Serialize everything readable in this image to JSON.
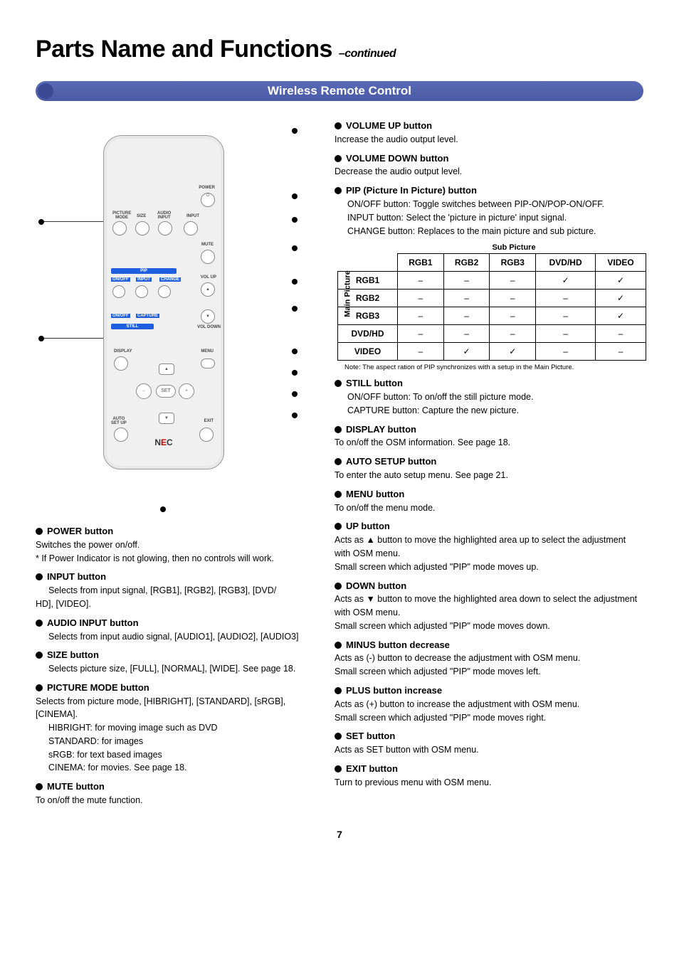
{
  "page": {
    "title": "Parts Name and Functions",
    "continued": "–continued",
    "banner": "Wireless Remote Control",
    "number": "7"
  },
  "remote_logo": "NEC",
  "left_items": [
    {
      "name": "power",
      "title": "POWER button",
      "lines": [
        "Switches the power on/off.",
        "* If Power Indicator is not glowing, then no controls will work."
      ]
    },
    {
      "name": "input",
      "title": "INPUT button",
      "lines_indent": [
        "Selects from input signal, [RGB1],  [RGB2],  [RGB3], [DVD/"
      ],
      "lines_cont": [
        "HD],  [VIDEO]."
      ]
    },
    {
      "name": "audio-input",
      "title": "AUDIO INPUT button",
      "lines_indent": [
        "Selects from input audio signal, [AUDIO1], [AUDIO2], [AUDIO3]"
      ]
    },
    {
      "name": "size",
      "title": "SIZE button",
      "lines_indent": [
        "Selects picture size, [FULL], [NORMAL], [WIDE]. See page 18."
      ]
    },
    {
      "name": "picture-mode",
      "title": "PICTURE MODE button",
      "lines": [
        "Selects from picture mode, [HIBRIGHT],  [STANDARD],  [sRGB], [CINEMA]."
      ],
      "lines_indent": [
        "HIBRIGHT: for moving image such as DVD",
        "STANDARD: for images",
        "sRGB: for text based images",
        "CINEMA: for movies.  See page 18."
      ]
    },
    {
      "name": "mute",
      "title": "MUTE button",
      "lines": [
        "To on/off the mute function."
      ]
    }
  ],
  "right_items": [
    {
      "name": "vol-up",
      "title": "VOLUME UP button",
      "lines": [
        "Increase the audio output level."
      ]
    },
    {
      "name": "vol-down",
      "title": "VOLUME DOWN button",
      "lines": [
        "Decrease the audio output level."
      ]
    },
    {
      "name": "pip",
      "title": "PIP (Picture In Picture) button",
      "lines_indent": [
        "ON/OFF button: Toggle switches between PIP-ON/POP-ON/OFF.",
        "INPUT button: Select the 'picture in picture' input signal.",
        "CHANGE button: Replaces to the main picture and sub picture."
      ]
    },
    {
      "name": "still",
      "title": "STILL button",
      "lines_indent": [
        "ON/OFF button: To on/off the still picture mode.",
        "CAPTURE button: Capture the new picture."
      ]
    },
    {
      "name": "display",
      "title": "DISPLAY button",
      "lines": [
        "To on/off the OSM information.  See page 18."
      ]
    },
    {
      "name": "auto-setup",
      "title": "AUTO SETUP button",
      "lines": [
        "To enter the auto setup menu.  See page 21."
      ]
    },
    {
      "name": "menu",
      "title": "MENU button",
      "lines": [
        "To on/off the menu mode."
      ]
    },
    {
      "name": "up",
      "title": "UP button",
      "lines": [
        "Acts as  ▲  button to move the highlighted area up to select the adjustment with OSM menu.",
        "Small screen which adjusted \"PIP\" mode moves up."
      ]
    },
    {
      "name": "down",
      "title": "DOWN button",
      "lines": [
        "Acts as  ▼  button to move the highlighted area down to select the adjustment with OSM menu.",
        "Small screen which adjusted \"PIP\" mode moves down."
      ]
    },
    {
      "name": "minus",
      "title": "MINUS button decrease",
      "lines": [
        "Acts as (-) button to decrease the adjustment with OSM menu.",
        "Small screen which adjusted \"PIP\" mode moves left."
      ]
    },
    {
      "name": "plus",
      "title": "PLUS button increase",
      "lines": [
        "Acts as (+) button to increase the adjustment with OSM menu.",
        "Small screen which adjusted \"PIP\" mode moves right."
      ]
    },
    {
      "name": "set",
      "title": "SET button",
      "lines": [
        "Acts as SET button with OSM menu."
      ]
    },
    {
      "name": "exit",
      "title": "EXIT button",
      "lines": [
        "Turn to previous menu with OSM menu."
      ]
    }
  ],
  "table": {
    "caption": "Sub Picture",
    "vlabel": "Main Picture",
    "note": "Note: The aspect ration of PIP synchronizes with a setup in the Main Picture.",
    "cols": [
      "RGB1",
      "RGB2",
      "RGB3",
      "DVD/HD",
      "VIDEO"
    ],
    "rows": [
      "RGB1",
      "RGB2",
      "RGB3",
      "DVD/HD",
      "VIDEO"
    ],
    "cells": [
      [
        "–",
        "–",
        "–",
        "✓",
        "✓"
      ],
      [
        "–",
        "–",
        "–",
        "–",
        "✓"
      ],
      [
        "–",
        "–",
        "–",
        "–",
        "✓"
      ],
      [
        "–",
        "–",
        "–",
        "–",
        "–"
      ],
      [
        "–",
        "✓",
        "✓",
        "–",
        "–"
      ]
    ],
    "border_color": "#000000",
    "header_weight": "700",
    "cell_fontsize": 12
  }
}
